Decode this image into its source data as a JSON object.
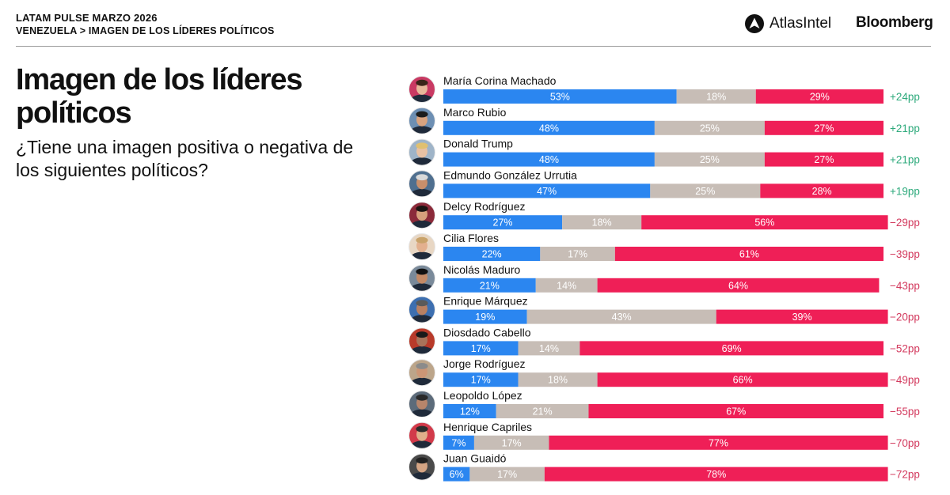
{
  "header": {
    "survey": "LATAM PULSE MARZO 2026",
    "breadcrumb": "VENEZUELA > IMAGEN DE LOS LÍDERES POLÍTICOS",
    "brand_atlas": "AtlasIntel",
    "brand_bloomberg": "Bloomberg"
  },
  "title": "Imagen de los líderes políticos",
  "subtitle": "¿Tiene una imagen positiva o negativa de los siguientes políticos?",
  "colors": {
    "positive": "#2b86f0",
    "neutral": "#c7bdb6",
    "negative": "#ef1f57",
    "net_positive": "#2eaa7c",
    "net_negative": "#d33a5e"
  },
  "chart_data": {
    "type": "bar",
    "stacked": true,
    "orientation": "horizontal",
    "categories": [
      "María Corina Machado",
      "Marco Rubio",
      "Donald Trump",
      "Edmundo González Urrutia",
      "Delcy Rodríguez",
      "Cilia Flores",
      "Nicolás Maduro",
      "Enrique Márquez",
      "Diosdado Cabello",
      "Jorge Rodríguez",
      "Leopoldo López",
      "Henrique Capriles",
      "Juan Guaidó"
    ],
    "series": [
      {
        "key": "positive",
        "values": [
          53,
          48,
          48,
          47,
          27,
          22,
          21,
          19,
          17,
          17,
          12,
          7,
          6
        ]
      },
      {
        "key": "neutral",
        "values": [
          18,
          25,
          25,
          25,
          18,
          17,
          14,
          43,
          14,
          18,
          21,
          17,
          17
        ]
      },
      {
        "key": "negative",
        "values": [
          29,
          27,
          27,
          28,
          56,
          61,
          64,
          39,
          69,
          66,
          67,
          77,
          78
        ]
      }
    ],
    "net_labels": [
      "+24pp",
      "+21pp",
      "+21pp",
      "+19pp",
      "−29pp",
      "−39pp",
      "−43pp",
      "−20pp",
      "−52pp",
      "−49pp",
      "−55pp",
      "−70pp",
      "−72pp"
    ],
    "xlim": [
      0,
      100
    ],
    "legend": "none",
    "grid": false
  }
}
